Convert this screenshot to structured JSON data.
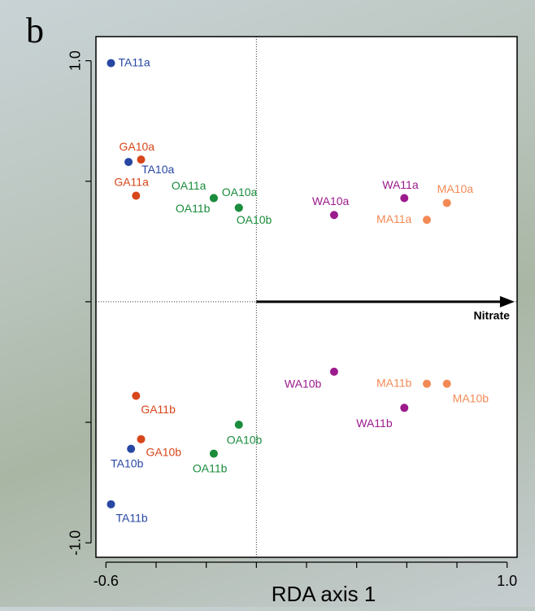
{
  "chart_data": {
    "type": "scatter",
    "panel_letter": "b",
    "xlabel": "RDA axis 1",
    "xlim": [
      -0.64,
      1.04
    ],
    "ylim": [
      -1.06,
      1.1
    ],
    "xticks": [
      {
        "value": -0.6,
        "label": "-0.6"
      },
      {
        "value": -0.4,
        "label": null
      },
      {
        "value": -0.2,
        "label": null
      },
      {
        "value": 0,
        "label": null
      },
      {
        "value": 0.2,
        "label": null
      },
      {
        "value": 0.4,
        "label": null
      },
      {
        "value": 0.6,
        "label": null
      },
      {
        "value": 0.8,
        "label": null
      },
      {
        "value": 1.0,
        "label": "1.0"
      }
    ],
    "yticks": [
      {
        "value": -1.0,
        "label": "-1.0"
      },
      {
        "value": -0.5,
        "label": null
      },
      {
        "value": 0,
        "label": null
      },
      {
        "value": 0.5,
        "label": null
      },
      {
        "value": 1.0,
        "label": "1.0"
      }
    ],
    "arrow": {
      "label": "Nitrate",
      "x": 1.03,
      "y": 0
    },
    "series": [
      {
        "color": "#2747a3",
        "labels": [
          "TA11a",
          "TA10a",
          "TA10b",
          "TA11b"
        ],
        "x": [
          -0.58,
          -0.51,
          -0.5,
          -0.58
        ],
        "y": [
          0.99,
          0.58,
          -0.61,
          -0.84
        ]
      },
      {
        "color": "#d8461b",
        "labels": [
          "GA10a",
          "GA11a",
          "GA11b",
          "GA10b"
        ],
        "x": [
          -0.46,
          -0.48,
          -0.48,
          -0.46
        ],
        "y": [
          0.59,
          0.44,
          -0.39,
          -0.57
        ]
      },
      {
        "color": "#1a8c3c",
        "labels": [
          "OA11a",
          "OA11b",
          "OA10a",
          "OA10b",
          "OA10b",
          "OA11b"
        ],
        "x": [
          -0.17,
          -0.17,
          -0.07,
          -0.07,
          -0.07,
          -0.17
        ],
        "y": [
          0.43,
          0.43,
          0.39,
          0.39,
          -0.51,
          -0.63
        ]
      },
      {
        "color": "#9b1b8c",
        "labels": [
          "WA11a",
          "WA10a",
          "WA10b",
          "WA11b"
        ],
        "x": [
          0.59,
          0.31,
          0.31,
          0.59
        ],
        "y": [
          0.43,
          0.36,
          -0.29,
          -0.44
        ]
      },
      {
        "color": "#f38a55",
        "labels": [
          "MA10a",
          "MA11a",
          "MA11b",
          "MA10b"
        ],
        "x": [
          0.76,
          0.68,
          0.68,
          0.76
        ],
        "y": [
          0.41,
          0.34,
          -0.34,
          -0.34
        ]
      }
    ]
  }
}
